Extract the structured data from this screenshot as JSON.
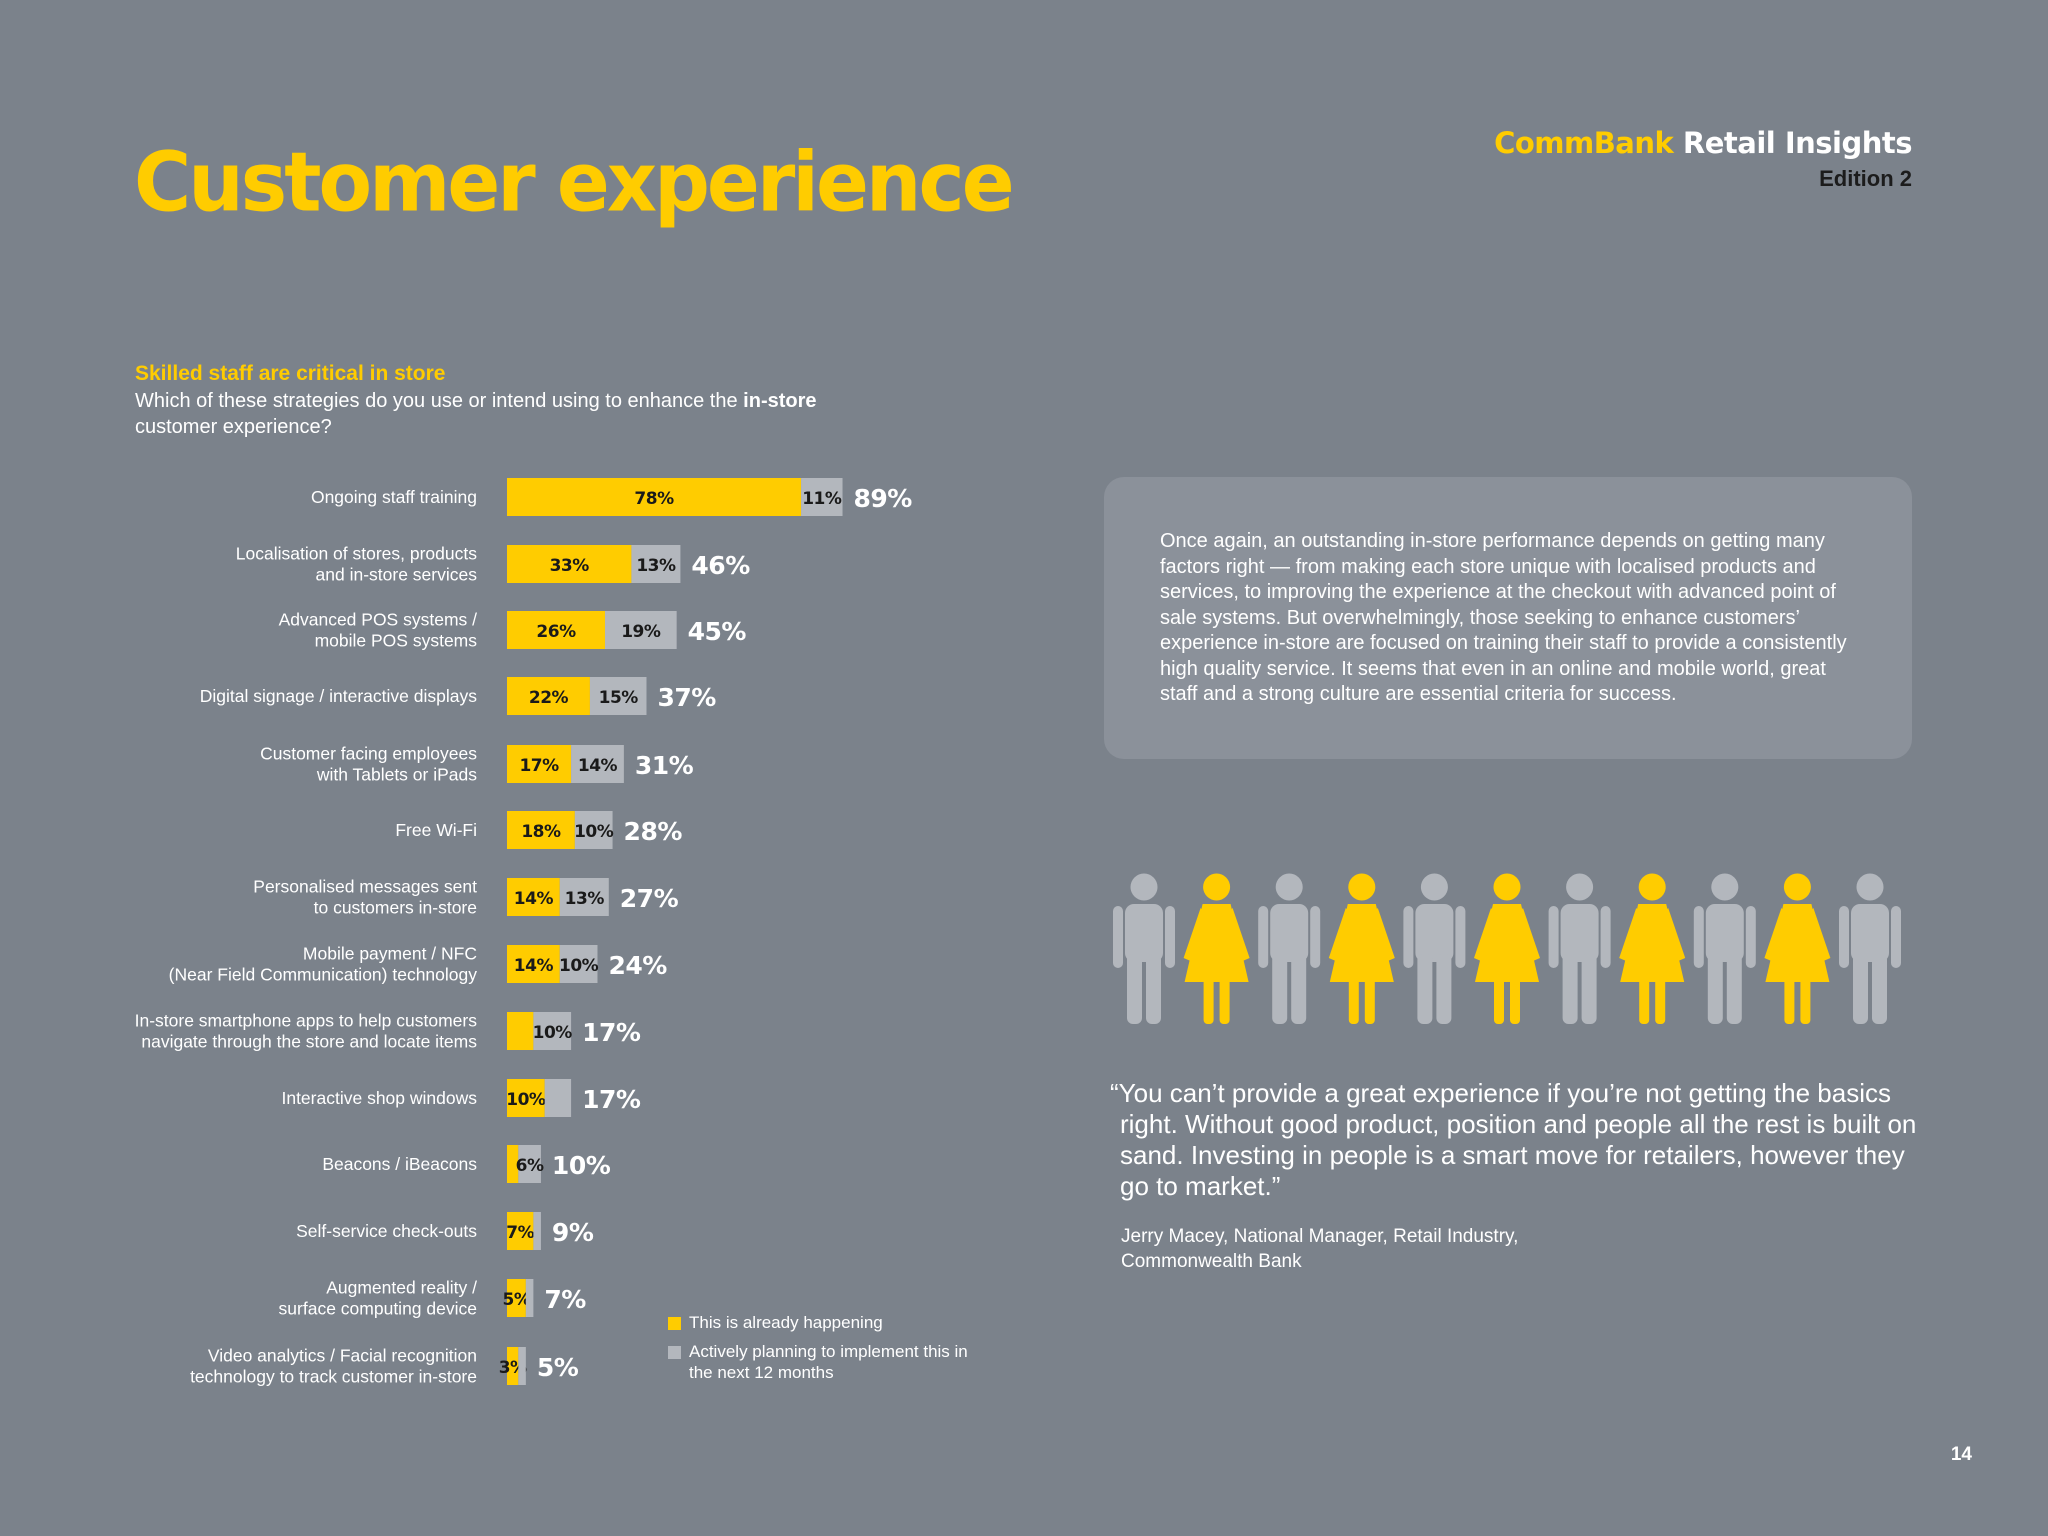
{
  "page": {
    "title": "Customer experience",
    "brand_part1": "CommBank",
    "brand_part2": "Retail Insights",
    "edition": "Edition 2",
    "page_number": "14"
  },
  "section": {
    "heading": "Skilled staff are critical in store",
    "question_before": "Which of these strategies do you use or intend using to enhance the ",
    "question_bold": "in-store",
    "question_after": " customer experience?"
  },
  "legend": {
    "happening": "This is already happening",
    "planning": "Actively planning to implement this in the next 12 months"
  },
  "colors": {
    "background": "#7b828b",
    "accent_yellow": "#ffcc00",
    "planning_grey": "#b3b7bd",
    "textbox_bg": "#8b919a",
    "person_grey": "#b3b7bd"
  },
  "textbox": {
    "body": "Once again, an outstanding in-store performance depends on getting many factors right — from making each store unique with localised products and services, to improving the experience at the checkout with advanced point of sale systems. But overwhelmingly, those seeking to enhance customers’ experience in-store are focused on training their staff to provide a consistently high quality service. It seems that even in an online and mobile world, great staff and a strong culture are essential criteria for success."
  },
  "people_icons": [
    "male",
    "female",
    "male",
    "female",
    "male",
    "female",
    "male",
    "female",
    "male",
    "female",
    "male"
  ],
  "quote": {
    "text": "“You can’t provide a great experience if you’re not getting the basics right. Without good product, position and people all the rest is built on sand. Investing in people is a smart move for retailers, however they go to market.”",
    "attribution_line1": "Jerry Macey, National Manager, Retail Industry,",
    "attribution_line2": "Commonwealth Bank"
  },
  "chart_data": {
    "type": "bar",
    "orientation": "horizontal",
    "stacked": true,
    "unit": "%",
    "categories": [
      [
        "Ongoing staff training"
      ],
      [
        "Localisation of stores, products",
        "and in-store services"
      ],
      [
        "Advanced POS systems /",
        "mobile POS systems"
      ],
      [
        "Digital signage / interactive displays"
      ],
      [
        "Customer facing employees",
        "with Tablets or iPads"
      ],
      [
        "Free Wi-Fi"
      ],
      [
        "Personalised messages sent",
        "to customers in-store"
      ],
      [
        "Mobile payment / NFC",
        "(Near Field Communication) technology"
      ],
      [
        "In-store smartphone apps to help customers",
        "navigate through the store and locate items"
      ],
      [
        "Interactive shop windows"
      ],
      [
        "Beacons / iBeacons"
      ],
      [
        "Self-service check-outs"
      ],
      [
        "Augmented reality /",
        "surface computing device"
      ],
      [
        "Video analytics / Facial recognition",
        "technology to track customer in-store"
      ]
    ],
    "series": [
      {
        "name": "This is already happening",
        "color": "#ffcc00",
        "values": [
          78,
          33,
          26,
          22,
          17,
          18,
          14,
          14,
          7,
          10,
          3,
          7,
          5,
          3
        ],
        "labels": [
          "78%",
          "33%",
          "26%",
          "22%",
          "17%",
          "18%",
          "14%",
          "14%",
          "",
          "10%",
          "",
          "7%",
          "5%",
          "3%"
        ]
      },
      {
        "name": "Actively planning to implement this in the next 12 months",
        "color": "#b3b7bd",
        "values": [
          11,
          13,
          19,
          15,
          14,
          10,
          13,
          10,
          10,
          7,
          6,
          2,
          2,
          2
        ],
        "labels": [
          "11%",
          "13%",
          "19%",
          "15%",
          "14%",
          "10%",
          "13%",
          "10%",
          "10%",
          "",
          "6%",
          "",
          "",
          ""
        ]
      }
    ],
    "totals": [
      "89%",
      "46%",
      "45%",
      "37%",
      "31%",
      "28%",
      "27%",
      "24%",
      "17%",
      "17%",
      "10%",
      "9%",
      "7%",
      "5%"
    ]
  }
}
